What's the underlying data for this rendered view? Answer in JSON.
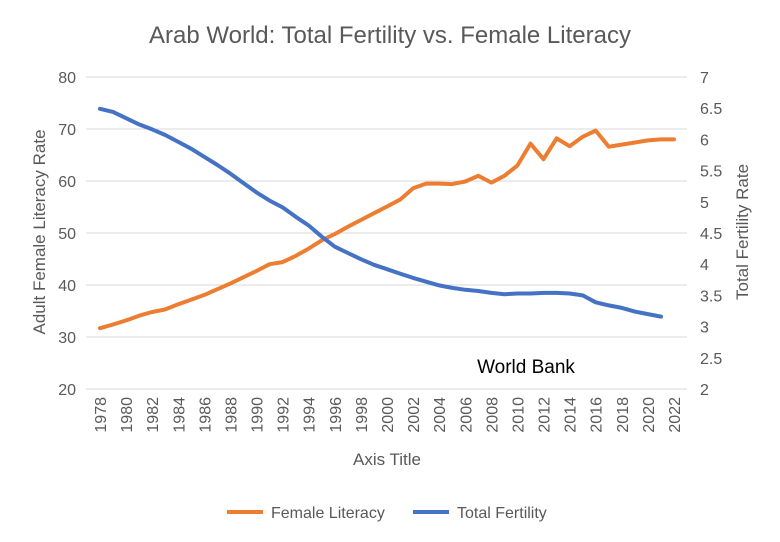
{
  "chart_data": {
    "type": "line",
    "title": "Arab World: Total Fertility vs. Female Literacy",
    "xlabel": "Axis Title",
    "ylabel": "Adult Female Literacy Rate",
    "y2label": "Total Fertility Rate",
    "ylim": [
      20,
      80
    ],
    "y_ticks": [
      "20",
      "30",
      "40",
      "50",
      "60",
      "70",
      "80"
    ],
    "y2lim": [
      2,
      7
    ],
    "y2_ticks": [
      "2",
      "2.5",
      "3",
      "3.5",
      "4",
      "4.5",
      "5",
      "5.5",
      "6",
      "6.5",
      "7"
    ],
    "x_ticks": [
      "1978",
      "1980",
      "1982",
      "1984",
      "1986",
      "1988",
      "1990",
      "1992",
      "1994",
      "1996",
      "1998",
      "2000",
      "2002",
      "2004",
      "2006",
      "2008",
      "2010",
      "2012",
      "2014",
      "2016",
      "2018",
      "2020",
      "2022"
    ],
    "x": [
      1978,
      1979,
      1980,
      1981,
      1982,
      1983,
      1984,
      1985,
      1986,
      1987,
      1988,
      1989,
      1990,
      1991,
      1992,
      1993,
      1994,
      1995,
      1996,
      1997,
      1998,
      1999,
      2000,
      2001,
      2002,
      2003,
      2004,
      2005,
      2006,
      2007,
      2008,
      2009,
      2010,
      2011,
      2012,
      2013,
      2014,
      2015,
      2016,
      2017,
      2018,
      2019,
      2020,
      2021,
      2022
    ],
    "grid": true,
    "legend_position": "bottom",
    "annotation": "World Bank",
    "series": [
      {
        "name": "Female Literacy",
        "axis": "left",
        "color": "#ED7D31",
        "values": [
          31.7,
          32.4,
          33.2,
          34.1,
          34.8,
          35.3,
          36.3,
          37.2,
          38.1,
          39.2,
          40.3,
          41.5,
          42.7,
          44.0,
          44.4,
          45.6,
          47.0,
          48.6,
          49.8,
          51.2,
          52.5,
          53.8,
          55.1,
          56.4,
          58.6,
          59.5,
          59.5,
          59.4,
          59.9,
          61.0,
          59.7,
          61.0,
          63.0,
          67.2,
          64.2,
          68.2,
          66.7,
          68.5,
          69.7,
          66.6,
          67.0,
          67.4,
          67.8,
          68.0,
          68.0
        ]
      },
      {
        "name": "Total Fertility",
        "axis": "right",
        "color": "#4472C4",
        "values": [
          6.49,
          6.44,
          6.34,
          6.24,
          6.16,
          6.07,
          5.96,
          5.85,
          5.72,
          5.59,
          5.45,
          5.3,
          5.15,
          5.02,
          4.91,
          4.76,
          4.62,
          4.44,
          4.28,
          4.18,
          4.08,
          3.99,
          3.92,
          3.85,
          3.78,
          3.72,
          3.66,
          3.62,
          3.59,
          3.57,
          3.54,
          3.52,
          3.53,
          3.53,
          3.54,
          3.54,
          3.53,
          3.5,
          3.39,
          3.34,
          3.3,
          3.24,
          3.2,
          3.16,
          null
        ]
      }
    ]
  }
}
